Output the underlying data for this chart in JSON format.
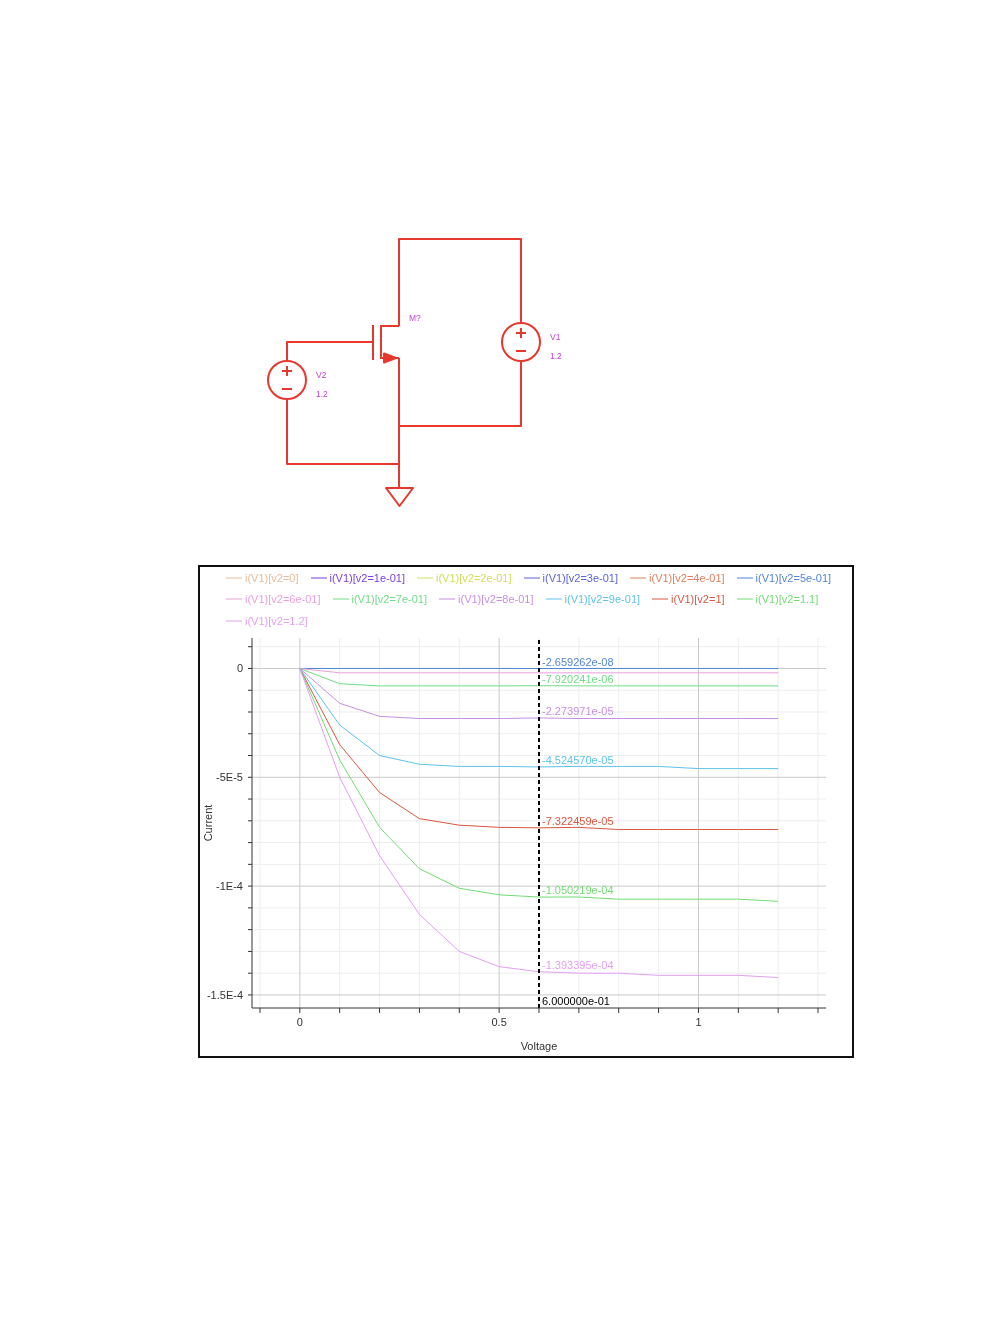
{
  "chart_data": [
    {
      "type": "other",
      "annotations": [
        "M?",
        "V1",
        "1.2",
        "V2",
        "1.2"
      ]
    },
    {
      "type": "line",
      "xlabel": "Voltage",
      "ylabel": "Current",
      "legend": "top",
      "grid": true,
      "x": [
        0,
        0.1,
        0.2,
        0.3,
        0.4,
        0.5,
        0.6,
        0.7,
        0.8,
        0.9,
        1,
        1.1,
        1.2
      ],
      "xlim": [
        -0.12,
        1.32
      ],
      "ylim": [
        -0.000156,
        1.4e-05
      ],
      "xticks": [
        {
          "value": -0.1,
          "label": null
        },
        0,
        {
          "value": 0.1,
          "label": null
        },
        {
          "value": 0.2,
          "label": null
        },
        {
          "value": 0.3,
          "label": null
        },
        {
          "value": 0.4,
          "label": null
        },
        0.5,
        {
          "value": 0.6,
          "label": null
        },
        {
          "value": 0.7,
          "label": null
        },
        {
          "value": 0.8,
          "label": null
        },
        {
          "value": 0.9,
          "label": null
        },
        1,
        {
          "value": 1.1,
          "label": null
        },
        {
          "value": 1.2,
          "label": null
        },
        {
          "value": 1.3,
          "label": null
        }
      ],
      "yticks": [
        {
          "value": 1e-05,
          "label": null
        },
        0,
        {
          "value": -1e-05,
          "label": null
        },
        {
          "value": -2e-05,
          "label": null
        },
        {
          "value": -3e-05,
          "label": null
        },
        {
          "value": -4e-05,
          "label": null
        },
        {
          "value": -5e-05,
          "label": "-5E-5"
        },
        {
          "value": -6e-05,
          "label": null
        },
        {
          "value": -7e-05,
          "label": null
        },
        {
          "value": -8e-05,
          "label": null
        },
        {
          "value": -9e-05,
          "label": null
        },
        {
          "value": -0.0001,
          "label": "-1E-4"
        },
        {
          "value": -0.00011,
          "label": null
        },
        {
          "value": -0.00012,
          "label": null
        },
        {
          "value": -0.00013,
          "label": null
        },
        {
          "value": -0.00014,
          "label": null
        },
        {
          "value": -0.00015,
          "label": "-1.5E-4"
        }
      ],
      "ref_lines": [
        {
          "axis": "x",
          "value": 0.6,
          "label": "6.000000e-01",
          "color": "#000000",
          "line_style": "dashed"
        }
      ],
      "series": [
        {
          "name": "i(V1)[v2=0]",
          "color": "#e8bc98",
          "values": [
            null,
            null,
            null,
            null,
            null,
            null,
            null,
            null,
            null,
            null,
            null,
            null,
            null
          ]
        },
        {
          "name": "i(V1)[v2=1e-01]",
          "color": "#7b3fe4",
          "values": [
            null,
            null,
            null,
            null,
            null,
            null,
            null,
            null,
            null,
            null,
            null,
            null,
            null
          ]
        },
        {
          "name": "i(V1)[v2=2e-01]",
          "color": "#cfe05a",
          "values": [
            null,
            null,
            null,
            null,
            null,
            null,
            null,
            null,
            null,
            null,
            null,
            null,
            null
          ]
        },
        {
          "name": "i(V1)[v2=3e-01]",
          "color": "#5b63e0",
          "values": [
            null,
            null,
            null,
            null,
            null,
            null,
            null,
            null,
            null,
            null,
            null,
            null,
            null
          ]
        },
        {
          "name": "i(V1)[v2=4e-01]",
          "color": "#e0805f",
          "values": [
            null,
            null,
            null,
            null,
            null,
            null,
            null,
            null,
            null,
            null,
            null,
            null,
            null
          ]
        },
        {
          "name": "i(V1)[v2=5e-01]",
          "color": "#4f86d9",
          "values": [
            0,
            0,
            0,
            0,
            0,
            0,
            -2.659262e-08,
            0,
            0,
            0,
            0,
            0,
            0
          ],
          "value_labels": [
            null,
            null,
            null,
            null,
            null,
            null,
            "-2.659262e-08",
            null,
            null,
            null,
            null,
            null,
            null
          ]
        },
        {
          "name": "i(V1)[v2=6e-01]",
          "color": "#eaa0dc",
          "values": [
            0,
            -2e-06,
            -2e-06,
            -2e-06,
            -2e-06,
            -2e-06,
            -2e-06,
            -2e-06,
            -2e-06,
            -2e-06,
            -2e-06,
            -2e-06,
            -2e-06
          ]
        },
        {
          "name": "i(V1)[v2=7e-01]",
          "color": "#6fdc85",
          "values": [
            0,
            -7e-06,
            -8e-06,
            -8e-06,
            -8e-06,
            -8e-06,
            -7.920241e-06,
            -8e-06,
            -8e-06,
            -8e-06,
            -8e-06,
            -8e-06,
            -8e-06
          ],
          "value_labels": [
            null,
            null,
            null,
            null,
            null,
            null,
            "-7.920241e-06",
            null,
            null,
            null,
            null,
            null,
            null
          ]
        },
        {
          "name": "i(V1)[v2=8e-01]",
          "color": "#c78fe6",
          "values": [
            0,
            -1.6e-05,
            -2.2e-05,
            -2.3e-05,
            -2.3e-05,
            -2.3e-05,
            -2.273971e-05,
            -2.3e-05,
            -2.3e-05,
            -2.3e-05,
            -2.3e-05,
            -2.3e-05,
            -2.3e-05
          ],
          "value_labels": [
            null,
            null,
            null,
            null,
            null,
            null,
            "-2.273971e-05",
            null,
            null,
            null,
            null,
            null,
            null
          ]
        },
        {
          "name": "i(V1)[v2=9e-01]",
          "color": "#5cc3ea",
          "values": [
            0,
            -2.6e-05,
            -4e-05,
            -4.4e-05,
            -4.5e-05,
            -4.5e-05,
            -4.52457e-05,
            -4.5e-05,
            -4.5e-05,
            -4.5e-05,
            -4.6e-05,
            -4.6e-05,
            -4.6e-05
          ],
          "value_labels": [
            null,
            null,
            null,
            null,
            null,
            null,
            "-4.524570e-05",
            null,
            null,
            null,
            null,
            null,
            null
          ]
        },
        {
          "name": "i(V1)[v2=1]",
          "color": "#d9573f",
          "values": [
            0,
            -3.5e-05,
            -5.7e-05,
            -6.9e-05,
            -7.2e-05,
            -7.3e-05,
            -7.322459e-05,
            -7.3e-05,
            -7.4e-05,
            -7.4e-05,
            -7.4e-05,
            -7.4e-05,
            -7.4e-05
          ],
          "value_labels": [
            null,
            null,
            null,
            null,
            null,
            null,
            "-7.322459e-05",
            null,
            null,
            null,
            null,
            null,
            null
          ]
        },
        {
          "name": "i(V1)[v2=1.1]",
          "color": "#72dc72",
          "values": [
            0,
            -4.2e-05,
            -7.3e-05,
            -9.2e-05,
            -0.000101,
            -0.000104,
            -0.0001050219,
            -0.000105,
            -0.000106,
            -0.000106,
            -0.000106,
            -0.000106,
            -0.000107
          ],
          "value_labels": [
            null,
            null,
            null,
            null,
            null,
            null,
            "-1.050219e-04",
            null,
            null,
            null,
            null,
            null,
            null
          ]
        },
        {
          "name": "i(V1)[v2=1.2]",
          "color": "#e39ff0",
          "values": [
            0,
            -5e-05,
            -8.6e-05,
            -0.000113,
            -0.00013,
            -0.000137,
            -0.0001393395,
            -0.00014,
            -0.00014,
            -0.000141,
            -0.000141,
            -0.000141,
            -0.000142
          ],
          "value_labels": [
            null,
            null,
            null,
            null,
            null,
            null,
            "-1.393395e-04",
            null,
            null,
            null,
            null,
            null,
            null
          ]
        }
      ]
    }
  ]
}
